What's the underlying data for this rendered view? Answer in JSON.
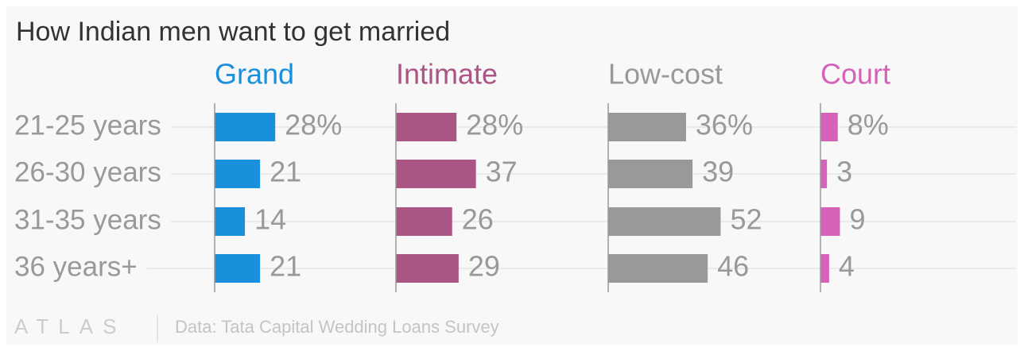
{
  "chart_data": {
    "type": "bar",
    "orientation": "horizontal",
    "title": "How Indian men want to get married",
    "categories": [
      "21-25 years",
      "26-30 years",
      "31-35 years",
      "36 years+"
    ],
    "series": [
      {
        "name": "Grand",
        "color": "#1a8fdc",
        "values": [
          28,
          21,
          14,
          21
        ],
        "value_labels": [
          "28%",
          "21",
          "14",
          "21"
        ]
      },
      {
        "name": "Intimate",
        "color": "#ab5585",
        "values": [
          28,
          37,
          26,
          29
        ],
        "value_labels": [
          "28%",
          "37",
          "26",
          "29"
        ]
      },
      {
        "name": "Low-cost",
        "color": "#999999",
        "values": [
          36,
          39,
          52,
          46
        ],
        "value_labels": [
          "36%",
          "39",
          "52",
          "46"
        ]
      },
      {
        "name": "Court",
        "color": "#d462b9",
        "values": [
          8,
          3,
          9,
          4
        ],
        "value_labels": [
          "8%",
          "3",
          "9",
          "4"
        ]
      }
    ],
    "logo": "ATLAS",
    "source": "Data: Tata Capital Wedding Loans Survey"
  }
}
